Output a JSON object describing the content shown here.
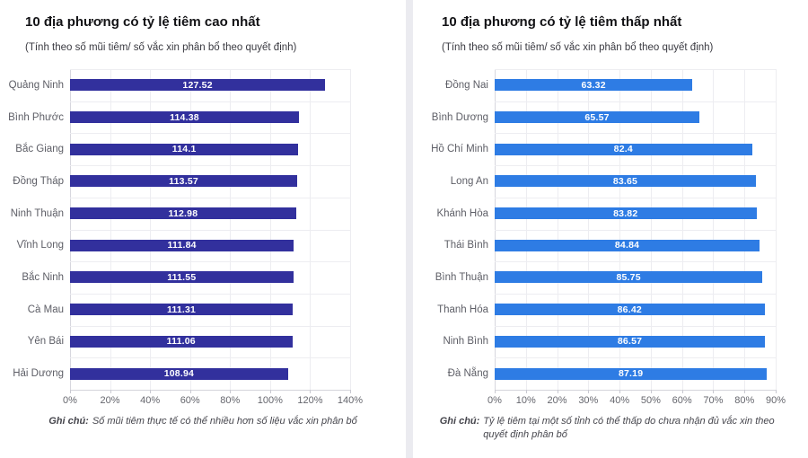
{
  "page": {
    "background": "#ffffff",
    "divider_color": "#ebebf0"
  },
  "chart_data": [
    {
      "type": "bar",
      "orientation": "horizontal",
      "title": "10 địa phương có tỷ lệ tiêm cao nhất",
      "subtitle": "(Tính theo số mũi tiêm/ số vắc xin phân bổ theo quyết định)",
      "categories": [
        "Quảng Ninh",
        "Bình Phước",
        "Bắc Giang",
        "Đồng Tháp",
        "Ninh Thuận",
        "Vĩnh Long",
        "Bắc Ninh",
        "Cà Mau",
        "Yên Bái",
        "Hải Dương"
      ],
      "values": [
        127.52,
        114.38,
        114.1,
        113.57,
        112.98,
        111.84,
        111.55,
        111.31,
        111.06,
        108.94
      ],
      "value_labels": [
        "127.52",
        "114.38",
        "114.1",
        "113.57",
        "112.98",
        "111.84",
        "111.55",
        "111.31",
        "111.06",
        "108.94"
      ],
      "xlim": [
        0,
        140
      ],
      "x_tick_labels": [
        "0%",
        "20%",
        "40%",
        "60%",
        "80%",
        "100%",
        "120%",
        "140%"
      ],
      "bar_color": "#32309d",
      "value_label_color": "#ffffff",
      "grid": true,
      "legend": "none",
      "note_label": "Ghi chú:",
      "note": "Số mũi tiêm thực tế có thể nhiều hơn số liệu vắc xin phân bổ"
    },
    {
      "type": "bar",
      "orientation": "horizontal",
      "title": "10 địa phương có tỷ lệ tiêm thấp nhất",
      "subtitle": "(Tính theo số mũi tiêm/ số vắc xin phân bổ theo quyết định)",
      "categories": [
        "Đồng Nai",
        "Bình Dương",
        "Hồ Chí Minh",
        "Long An",
        "Khánh Hòa",
        "Thái Bình",
        "Bình Thuận",
        "Thanh Hóa",
        "Ninh Bình",
        "Đà Nẵng"
      ],
      "values": [
        63.32,
        65.57,
        82.4,
        83.65,
        83.82,
        84.84,
        85.75,
        86.42,
        86.57,
        87.19
      ],
      "value_labels": [
        "63.32",
        "65.57",
        "82.4",
        "83.65",
        "83.82",
        "84.84",
        "85.75",
        "86.42",
        "86.57",
        "87.19"
      ],
      "xlim": [
        0,
        90
      ],
      "x_tick_labels": [
        "0%",
        "10%",
        "20%",
        "30%",
        "40%",
        "50%",
        "60%",
        "70%",
        "80%",
        "90%"
      ],
      "bar_color": "#2e7ce4",
      "value_label_color": "#ffffff",
      "grid": true,
      "legend": "none",
      "note_label": "Ghi chú:",
      "note": "Tỷ lệ tiêm tại một số tỉnh có thể thấp do chưa nhận đủ vắc xin theo quyết định phân bổ"
    }
  ]
}
